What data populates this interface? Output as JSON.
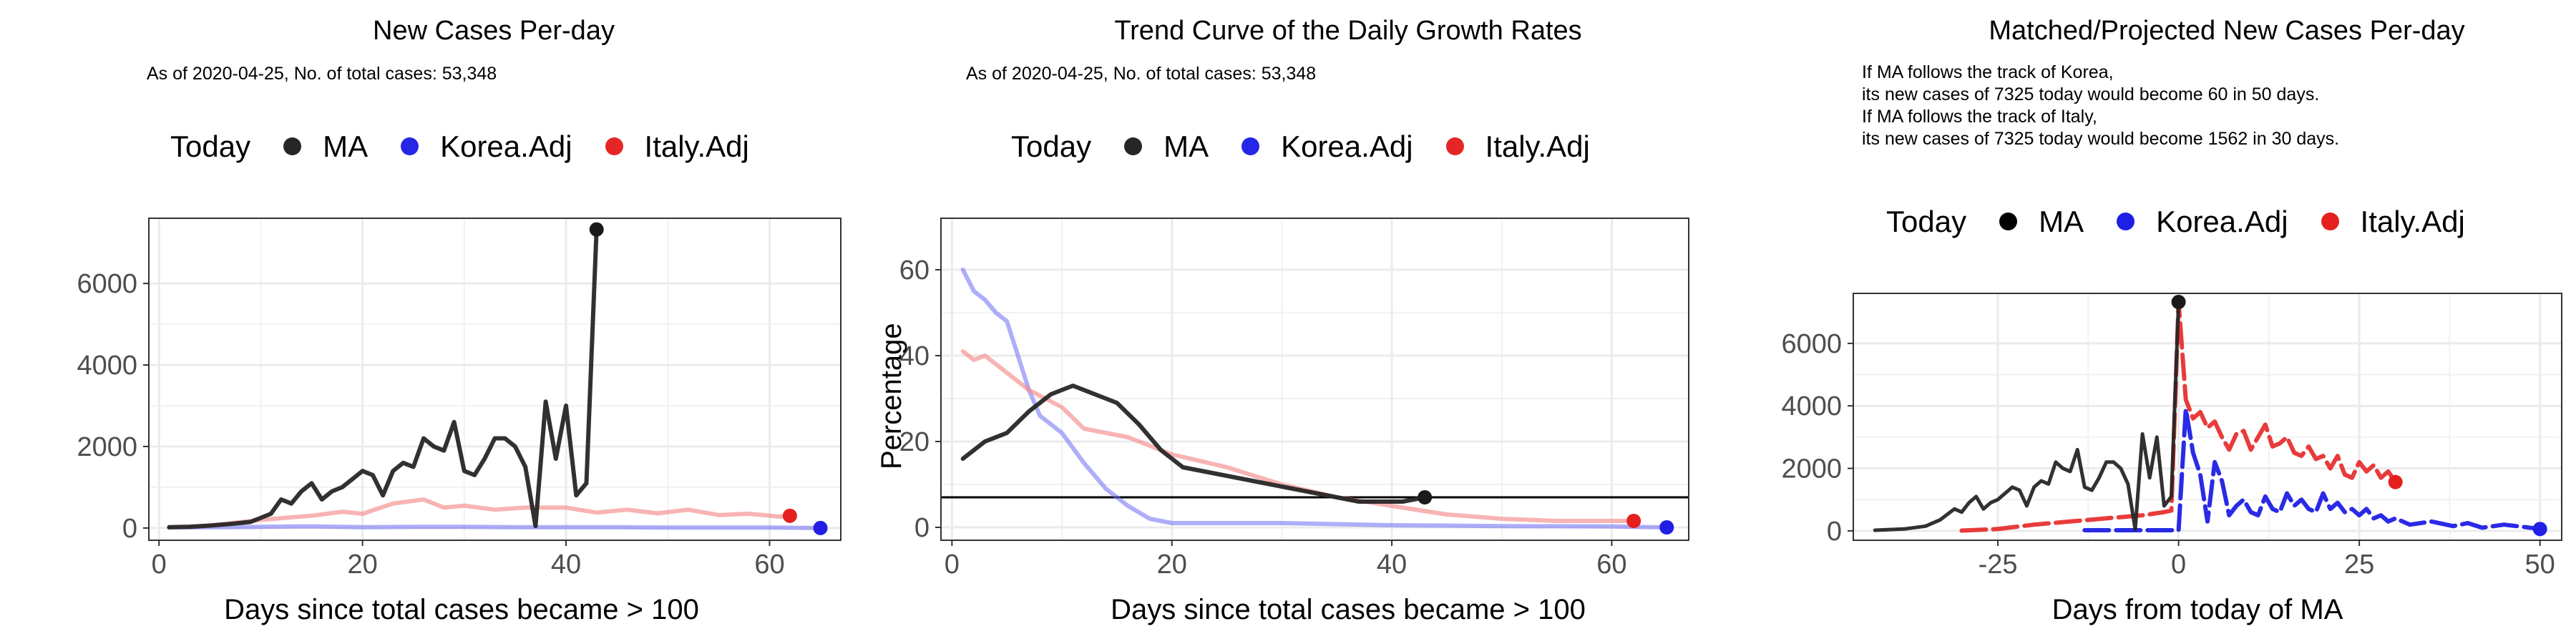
{
  "colors": {
    "MA": "#262626",
    "Korea.Adj": "#1f1fe6",
    "Italy.Adj": "#e62626",
    "today": "#000000",
    "grid": "#ebebeb",
    "panel_border": "#333333"
  },
  "panels": [
    {
      "title": "New Cases Per-day",
      "note_lines": [
        "As of 2020-04-25, No. of total cases: 53,348"
      ],
      "legend": {
        "title": "Today",
        "items": [
          "MA",
          "Korea.Adj",
          "Italy.Adj"
        ]
      },
      "xlabel": "Days since total cases became > 100",
      "ylabel": ""
    },
    {
      "title": "Trend Curve of the Daily Growth Rates",
      "note_lines": [
        "As of 2020-04-25, No. of total cases: 53,348"
      ],
      "legend": {
        "title": "Today",
        "items": [
          "MA",
          "Korea.Adj",
          "Italy.Adj"
        ]
      },
      "xlabel": "Days since total cases became > 100",
      "ylabel": "Percentage"
    },
    {
      "title": "Matched/Projected New Cases Per-day",
      "note_lines": [
        "If MA follows the track of Korea,",
        "its new cases of 7325 today would become 60 in 50 days.",
        "If MA follows the track of Italy,",
        "its new cases of 7325 today would become 1562 in 30 days."
      ],
      "legend": {
        "title": "Today",
        "items": [
          "MA",
          "Korea.Adj",
          "Italy.Adj"
        ]
      },
      "xlabel": "Days from today of MA",
      "ylabel": ""
    }
  ],
  "chart_data": [
    {
      "type": "line",
      "title": "New Cases Per-day",
      "xlabel": "Days since total cases became > 100",
      "ylabel": "",
      "xlim": [
        -1,
        67
      ],
      "ylim": [
        -300,
        7600
      ],
      "xticks": [
        0,
        20,
        40,
        60
      ],
      "yticks": [
        0,
        2000,
        4000,
        6000
      ],
      "grid": true,
      "legend_position": "top",
      "series": [
        {
          "name": "MA",
          "x": [
            1,
            3,
            5,
            7,
            9,
            11,
            12,
            13,
            14,
            15,
            16,
            17,
            18,
            19,
            20,
            21,
            22,
            23,
            24,
            25,
            26,
            27,
            28,
            29,
            30,
            31,
            32,
            33,
            34,
            35,
            36,
            37,
            38,
            39,
            40,
            41,
            42,
            43
          ],
          "y": [
            20,
            30,
            60,
            100,
            150,
            350,
            700,
            600,
            900,
            1100,
            700,
            900,
            1000,
            1200,
            1400,
            1300,
            800,
            1400,
            1600,
            1500,
            2200,
            2000,
            1900,
            2600,
            1400,
            1300,
            1700,
            2200,
            2200,
            2000,
            1500,
            50,
            3100,
            1700,
            3000,
            800,
            1100,
            7325
          ],
          "today": [
            43,
            7325
          ]
        },
        {
          "name": "Korea.Adj",
          "x": [
            1,
            5,
            10,
            15,
            20,
            25,
            30,
            35,
            40,
            45,
            50,
            55,
            60,
            65
          ],
          "y": [
            10,
            20,
            30,
            40,
            20,
            30,
            30,
            20,
            20,
            20,
            10,
            10,
            10,
            0
          ],
          "today": [
            65,
            0
          ]
        },
        {
          "name": "Italy.Adj",
          "x": [
            1,
            5,
            10,
            15,
            18,
            20,
            23,
            26,
            28,
            30,
            33,
            36,
            40,
            43,
            46,
            49,
            52,
            55,
            58,
            61,
            62
          ],
          "y": [
            10,
            60,
            200,
            300,
            400,
            350,
            600,
            700,
            500,
            550,
            450,
            500,
            500,
            380,
            450,
            360,
            450,
            320,
            350,
            280,
            300
          ],
          "today": [
            62,
            300
          ]
        }
      ]
    },
    {
      "type": "line",
      "title": "Trend Curve of the Daily Growth Rates",
      "xlabel": "Days since total cases became > 100",
      "ylabel": "Percentage",
      "xlim": [
        -1,
        67
      ],
      "ylim": [
        -3,
        72
      ],
      "xticks": [
        0,
        20,
        40,
        60
      ],
      "yticks": [
        0,
        20,
        40,
        60
      ],
      "grid": true,
      "legend_position": "top",
      "hline": 7,
      "series": [
        {
          "name": "MA",
          "x": [
            1,
            3,
            5,
            7,
            9,
            11,
            13,
            15,
            17,
            19,
            21,
            23,
            25,
            27,
            29,
            31,
            33,
            35,
            37,
            39,
            41,
            43
          ],
          "y": [
            16,
            20,
            22,
            27,
            31,
            33,
            31,
            29,
            24,
            18,
            14,
            13,
            12,
            11,
            10,
            9,
            8,
            7,
            6,
            6,
            6,
            7
          ],
          "today": [
            43,
            7
          ]
        },
        {
          "name": "Korea.Adj",
          "x": [
            1,
            2,
            3,
            4,
            5,
            6,
            7,
            8,
            9,
            10,
            12,
            14,
            16,
            18,
            20,
            25,
            30,
            40,
            50,
            60,
            65
          ],
          "y": [
            60,
            55,
            53,
            50,
            48,
            40,
            32,
            26,
            24,
            22,
            15,
            9,
            5,
            2,
            1,
            1,
            1,
            0.5,
            0.3,
            0.2,
            0
          ],
          "today": [
            65,
            0
          ]
        },
        {
          "name": "Italy.Adj",
          "x": [
            1,
            2,
            3,
            4,
            5,
            7,
            10,
            12,
            14,
            16,
            18,
            20,
            25,
            30,
            35,
            40,
            45,
            50,
            55,
            60,
            62
          ],
          "y": [
            41,
            39,
            40,
            38,
            36,
            32,
            28,
            23,
            22,
            21,
            19,
            17,
            14,
            10,
            7,
            5,
            3,
            2,
            1.5,
            1.5,
            1.5
          ],
          "today": [
            62,
            1.5
          ]
        }
      ]
    },
    {
      "type": "line",
      "title": "Matched/Projected New Cases Per-day",
      "xlabel": "Days from today of MA",
      "ylabel": "",
      "xlim": [
        -45,
        53
      ],
      "ylim": [
        -300,
        7600
      ],
      "xticks": [
        -25,
        0,
        25,
        50
      ],
      "xtick_labels": [
        "-25",
        "0",
        "25",
        "50"
      ],
      "yticks": [
        0,
        2000,
        4000,
        6000
      ],
      "grid": true,
      "legend_position": "top",
      "series": [
        {
          "name": "MA",
          "x": [
            -42,
            -38,
            -35,
            -33,
            -31,
            -30,
            -29,
            -28,
            -27,
            -26,
            -25,
            -24,
            -23,
            -22,
            -21,
            -20,
            -19,
            -18,
            -17,
            -16,
            -15,
            -14,
            -13,
            -12,
            -11,
            -10,
            -9,
            -8,
            -7,
            -6,
            -5,
            -4,
            -3,
            -2,
            -1,
            0
          ],
          "y": [
            20,
            60,
            150,
            350,
            700,
            600,
            900,
            1100,
            700,
            900,
            1000,
            1200,
            1400,
            1300,
            800,
            1400,
            1600,
            1500,
            2200,
            2000,
            1900,
            2600,
            1400,
            1300,
            1700,
            2200,
            2200,
            2000,
            1500,
            50,
            3100,
            1700,
            3000,
            800,
            1100,
            7325
          ],
          "today": [
            0,
            7325
          ]
        },
        {
          "name": "Korea.Adj",
          "x": [
            -13,
            -10,
            -5,
            -1,
            0,
            1,
            2,
            3,
            4,
            5,
            6,
            7,
            8,
            9,
            10,
            11,
            12,
            13,
            14,
            15,
            16,
            17,
            18,
            19,
            20,
            21,
            22,
            23,
            24,
            25,
            26,
            27,
            28,
            29,
            30,
            32,
            35,
            38,
            40,
            42,
            45,
            48,
            50
          ],
          "y": [
            20,
            20,
            20,
            20,
            20,
            3900,
            2500,
            1800,
            300,
            2200,
            1600,
            500,
            800,
            1000,
            600,
            500,
            1100,
            700,
            600,
            1200,
            800,
            1000,
            700,
            600,
            1200,
            700,
            900,
            600,
            700,
            500,
            700,
            400,
            500,
            300,
            400,
            200,
            300,
            150,
            250,
            100,
            200,
            120,
            60
          ],
          "today": [
            50,
            60
          ]
        },
        {
          "name": "Italy.Adj",
          "x": [
            -30,
            -25,
            -20,
            -15,
            -10,
            -5,
            -2,
            -1,
            0,
            1,
            2,
            3,
            4,
            5,
            6,
            7,
            8,
            9,
            10,
            11,
            12,
            13,
            14,
            15,
            16,
            17,
            18,
            19,
            20,
            21,
            22,
            23,
            24,
            25,
            26,
            27,
            28,
            29,
            30
          ],
          "y": [
            10,
            60,
            200,
            300,
            400,
            500,
            600,
            650,
            7325,
            4200,
            3600,
            3800,
            3300,
            3500,
            3000,
            2600,
            3100,
            3200,
            2600,
            3000,
            3400,
            2700,
            2800,
            3000,
            2500,
            2400,
            2700,
            2300,
            2400,
            2000,
            2400,
            1800,
            1700,
            2200,
            1900,
            2100,
            1700,
            1900,
            1562
          ],
          "today": [
            30,
            1562
          ]
        }
      ]
    }
  ]
}
